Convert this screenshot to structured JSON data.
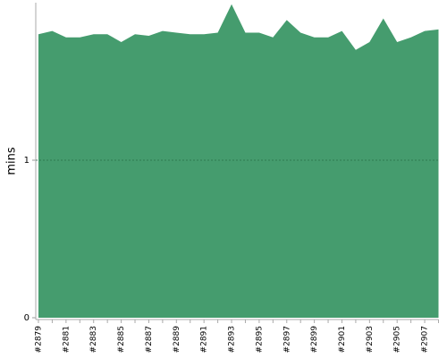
{
  "chart_data": {
    "type": "area",
    "y_label": "mins",
    "categories": [
      "#2879",
      null,
      "#2881",
      null,
      "#2883",
      null,
      "#2885",
      null,
      "#2887",
      null,
      "#2889",
      null,
      "#2891",
      null,
      "#2893",
      null,
      "#2895",
      null,
      "#2897",
      null,
      "#2899",
      null,
      "#2901",
      null,
      "#2903",
      null,
      "#2905",
      null,
      "#2907",
      null
    ],
    "series": [
      {
        "color": "#459c6e",
        "values": [
          1.8,
          1.82,
          1.78,
          1.78,
          1.8,
          1.8,
          1.75,
          1.8,
          1.79,
          1.82,
          1.81,
          1.8,
          1.8,
          1.81,
          1.99,
          1.81,
          1.81,
          1.78,
          1.89,
          1.81,
          1.78,
          1.78,
          1.82,
          1.7,
          1.75,
          1.9,
          1.75,
          1.78,
          1.82,
          1.83
        ]
      }
    ],
    "ylim": [
      0,
      2
    ],
    "yticks": [
      0,
      1
    ],
    "grid": true
  }
}
